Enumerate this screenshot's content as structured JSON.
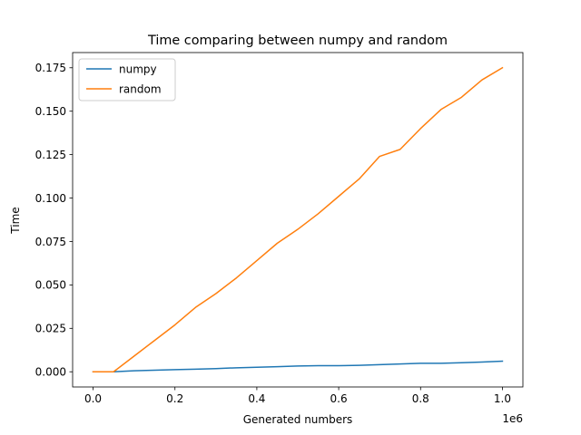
{
  "chart_data": {
    "type": "line",
    "title": "Time comparing between numpy and random",
    "xlabel": "Generated numbers",
    "ylabel": "Time",
    "x_offset_label": "1e6",
    "xlim": [
      -0.05,
      1.05
    ],
    "ylim": [
      -0.00875,
      0.18375
    ],
    "x_ticks": [
      0.0,
      0.2,
      0.4,
      0.6,
      0.8,
      1.0
    ],
    "x_tick_labels": [
      "0.0",
      "0.2",
      "0.4",
      "0.6",
      "0.8",
      "1.0"
    ],
    "y_ticks": [
      0.0,
      0.025,
      0.05,
      0.075,
      0.1,
      0.125,
      0.15,
      0.175
    ],
    "y_tick_labels": [
      "0.000",
      "0.025",
      "0.050",
      "0.075",
      "0.100",
      "0.125",
      "0.150",
      "0.175"
    ],
    "grid": false,
    "legend_position": "top-left",
    "x": [
      0.0,
      0.05,
      0.1,
      0.15,
      0.2,
      0.25,
      0.3,
      0.35,
      0.4,
      0.45,
      0.5,
      0.55,
      0.6,
      0.65,
      0.7,
      0.75,
      0.8,
      0.85,
      0.9,
      0.95,
      1.0
    ],
    "series": [
      {
        "name": "numpy",
        "color": "#1f77b4",
        "values": [
          0.0,
          0.0,
          0.0006,
          0.0009,
          0.0012,
          0.0015,
          0.0018,
          0.0023,
          0.0026,
          0.0029,
          0.0033,
          0.0035,
          0.0035,
          0.0037,
          0.0041,
          0.0045,
          0.0049,
          0.0049,
          0.0052,
          0.0056,
          0.0061
        ]
      },
      {
        "name": "random",
        "color": "#ff7f0e",
        "values": [
          0.0,
          0.0,
          0.009,
          0.018,
          0.027,
          0.037,
          0.045,
          0.054,
          0.064,
          0.074,
          0.082,
          0.091,
          0.101,
          0.111,
          0.124,
          0.128,
          0.14,
          0.151,
          0.158,
          0.168,
          0.175
        ]
      }
    ]
  }
}
